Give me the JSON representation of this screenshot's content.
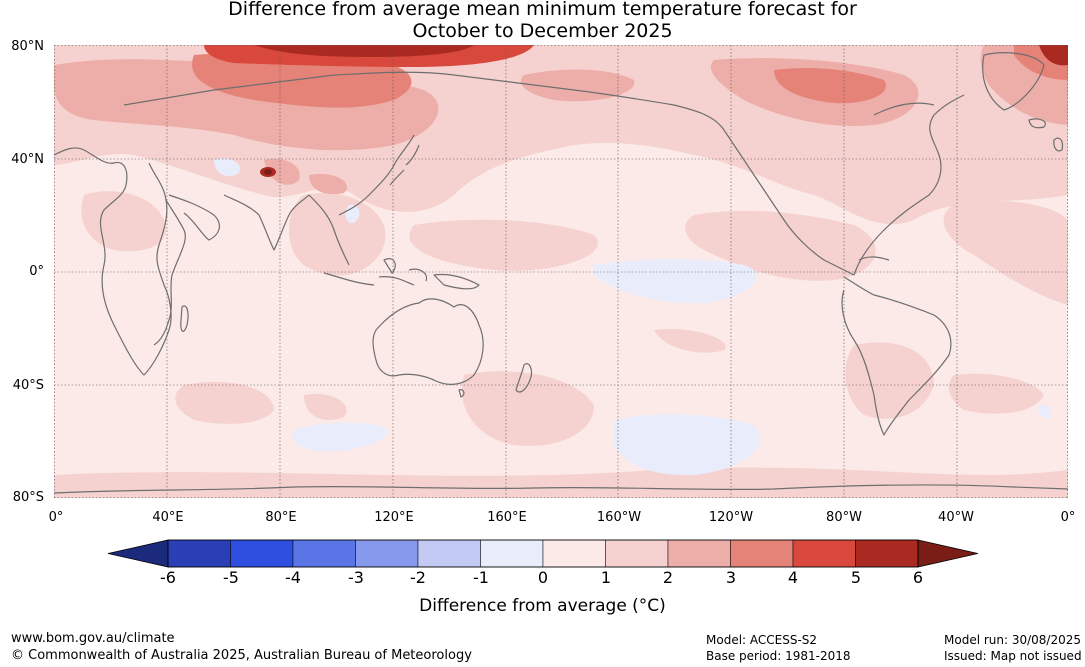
{
  "title_line1": "Difference from average mean minimum temperature forecast for",
  "title_line2": "October to December 2025",
  "lat_labels": [
    "80°N",
    "40°N",
    "0°",
    "40°S",
    "80°S"
  ],
  "lon_labels": [
    "0°",
    "40°E",
    "80°E",
    "120°E",
    "160°E",
    "160°W",
    "120°W",
    "80°W",
    "40°W",
    "0°"
  ],
  "colorbar": {
    "ticks": [
      "-6",
      "-5",
      "-4",
      "-3",
      "-2",
      "-1",
      "0",
      "1",
      "2",
      "3",
      "4",
      "5",
      "6"
    ],
    "colors": [
      "#1b2a7a",
      "#2a3fb5",
      "#2f4fe0",
      "#5a75e6",
      "#8799ec",
      "#c2caf4",
      "#e9ecfb",
      "#fceae8",
      "#f5d2cf",
      "#edaea9",
      "#e58379",
      "#d9483c",
      "#aa2a22",
      "#7a1d17"
    ],
    "label": "Difference from average (°C)"
  },
  "footer": {
    "website": "www.bom.gov.au/climate",
    "copyright": "© Commonwealth of Australia 2025, Australian Bureau of Meteorology",
    "model": "Model: ACCESS-S2",
    "base_period": "Base period: 1981-2018",
    "model_run": "Model run: 30/08/2025",
    "issued": "Issued: Map not issued"
  }
}
